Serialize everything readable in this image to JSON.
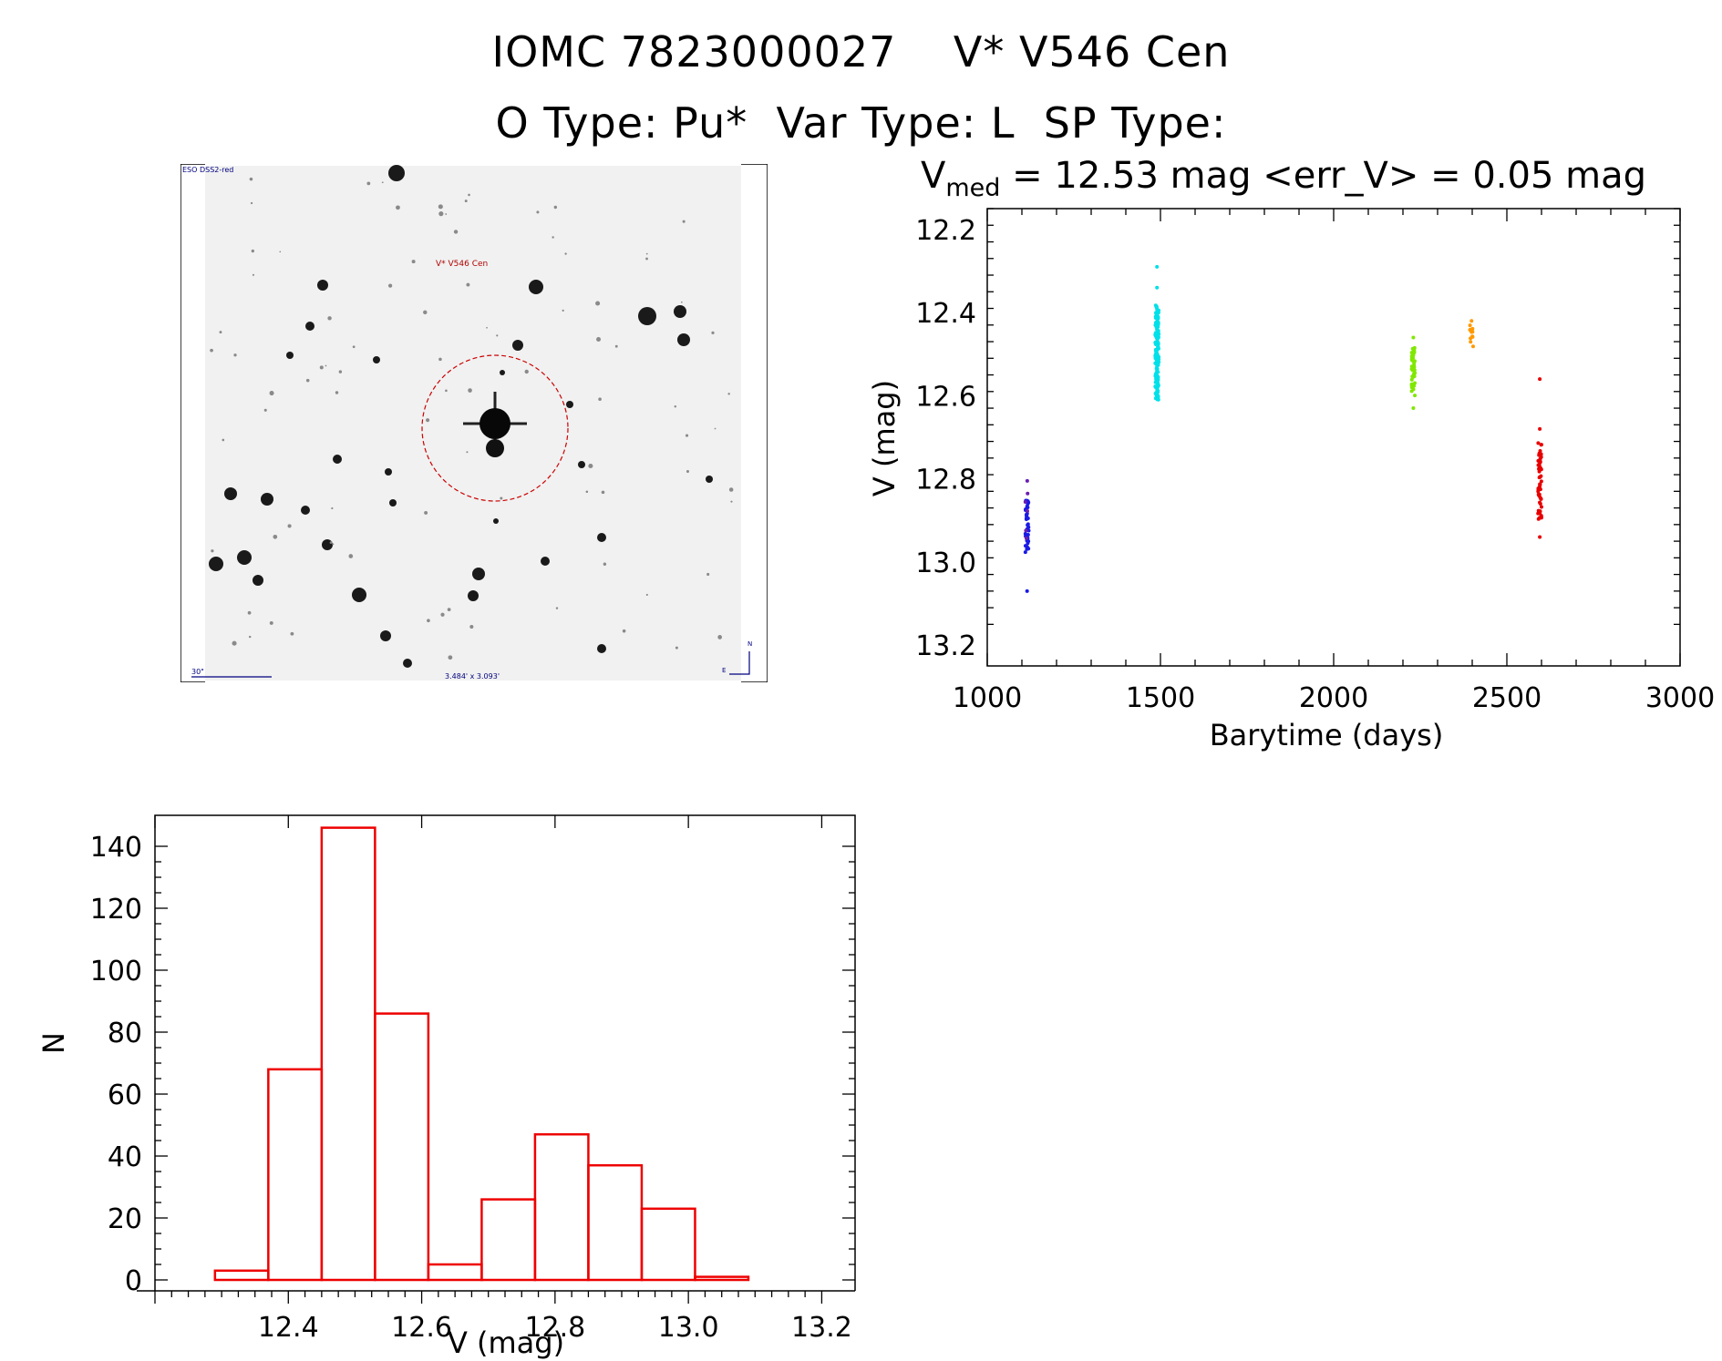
{
  "header": {
    "title_line1": "IOMC 7823000027    V* V546 Cen",
    "title_line2": "O Type: Pu*  Var Type: L  SP Type:",
    "lc_header_v": "V",
    "lc_header_sub": "med",
    "lc_header_rest": " = 12.53 mag <err_V> = 0.05 mag"
  },
  "finder": {
    "survey_label": "ESO DSS2-red",
    "target_label": "V* V546 Cen",
    "scale_label": "30\"",
    "fov_label": "3.484' x 3.093'",
    "north_label": "N",
    "east_label": "E"
  },
  "chart_data": [
    {
      "type": "scatter",
      "xlabel": "Barytime (days)",
      "ylabel": "V (mag)",
      "xlim": [
        1000,
        3000
      ],
      "ylim": [
        13.25,
        12.15
      ],
      "y_reversed": true,
      "x_ticks": [
        "1000",
        "1500",
        "2000",
        "2500",
        "3000"
      ],
      "y_ticks": [
        "12.2",
        "12.4",
        "12.6",
        "12.8",
        "13.0",
        "13.2"
      ],
      "series": [
        {
          "color": "#1a1ae6",
          "x_center": 1115,
          "y_min": 12.84,
          "y_max": 12.98,
          "y_outliers": [
            13.07
          ],
          "n": 40
        },
        {
          "color": "#6a1fb0",
          "x_center": 1113,
          "y_min": 12.74,
          "y_max": 12.95,
          "y_outliers": [],
          "n": 6
        },
        {
          "color": "#00e0e8",
          "x_center": 1490,
          "y_min": 12.38,
          "y_max": 12.61,
          "y_outliers": [
            12.29,
            12.34
          ],
          "n": 160
        },
        {
          "color": "#80e800",
          "x_center": 2230,
          "y_min": 12.48,
          "y_max": 12.6,
          "y_outliers": [
            12.46,
            12.63
          ],
          "n": 50
        },
        {
          "color": "#ff9900",
          "x_center": 2398,
          "y_min": 12.43,
          "y_max": 12.49,
          "y_outliers": [
            12.42
          ],
          "n": 12
        },
        {
          "color": "#e80000",
          "x_center": 2595,
          "y_min": 12.71,
          "y_max": 12.9,
          "y_outliers": [
            12.56,
            12.68,
            12.94
          ],
          "n": 60
        }
      ]
    },
    {
      "type": "bar",
      "style": "histogram-steps",
      "xlabel": "V (mag)",
      "ylabel": "N",
      "xlim": [
        12.2,
        13.25
      ],
      "ylim": [
        0,
        150
      ],
      "x_ticks": [
        "12.4",
        "12.6",
        "12.8",
        "13.0",
        "13.2"
      ],
      "y_ticks": [
        "0",
        "20",
        "40",
        "60",
        "80",
        "100",
        "120",
        "140"
      ],
      "bin_edges": [
        12.29,
        12.37,
        12.45,
        12.53,
        12.61,
        12.69,
        12.77,
        12.85,
        12.93,
        13.01,
        13.09
      ],
      "values": [
        3,
        68,
        146,
        86,
        5,
        26,
        47,
        37,
        23,
        1
      ],
      "color": "#ee0000"
    }
  ]
}
